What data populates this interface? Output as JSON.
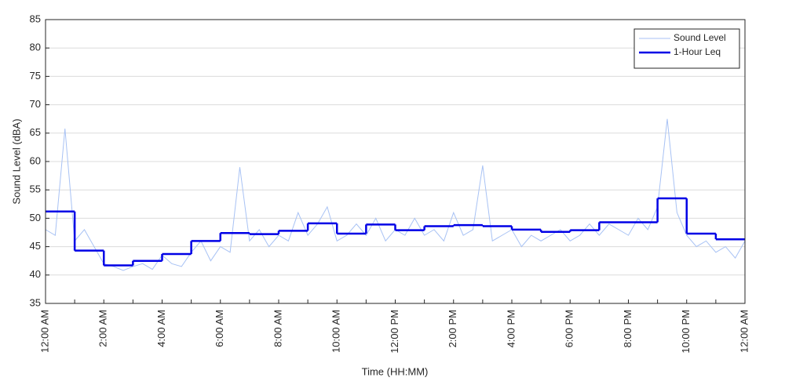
{
  "chart_data": {
    "type": "line",
    "xlabel": "Time (HH:MM)",
    "ylabel": "Sound Level (dBA)",
    "xlim": [
      0,
      1440
    ],
    "xticks": [
      {
        "value": 0,
        "label": "12:00 AM"
      },
      {
        "value": 120,
        "label": "2:00 AM"
      },
      {
        "value": 240,
        "label": "4:00 AM"
      },
      {
        "value": 360,
        "label": "6:00 AM"
      },
      {
        "value": 480,
        "label": "8:00 AM"
      },
      {
        "value": 600,
        "label": "10:00 AM"
      },
      {
        "value": 720,
        "label": "12:00 PM"
      },
      {
        "value": 840,
        "label": "2:00 PM"
      },
      {
        "value": 960,
        "label": "4:00 PM"
      },
      {
        "value": 1080,
        "label": "6:00 PM"
      },
      {
        "value": 1200,
        "label": "8:00 PM"
      },
      {
        "value": 1320,
        "label": "10:00 PM"
      },
      {
        "value": 1440,
        "label": "12:00 AM"
      }
    ],
    "xminorticks": [
      60,
      180,
      300,
      420,
      540,
      660,
      780,
      900,
      1020,
      1140,
      1260,
      1380
    ],
    "ylim": [
      35,
      85
    ],
    "yticks": [
      35,
      40,
      45,
      50,
      55,
      60,
      65,
      70,
      75,
      80,
      85
    ],
    "grid": true,
    "legend": "top-right",
    "series": [
      {
        "name": "Sound Level",
        "color": "#a8c2f4",
        "style": "line",
        "x": [
          0,
          20,
          40,
          60,
          80,
          100,
          120,
          140,
          160,
          180,
          200,
          220,
          240,
          260,
          280,
          300,
          320,
          340,
          360,
          380,
          400,
          420,
          440,
          460,
          480,
          500,
          520,
          540,
          560,
          580,
          600,
          620,
          640,
          660,
          680,
          700,
          720,
          740,
          760,
          780,
          800,
          820,
          840,
          860,
          880,
          900,
          920,
          940,
          960,
          980,
          1000,
          1020,
          1040,
          1060,
          1080,
          1100,
          1120,
          1140,
          1160,
          1180,
          1200,
          1220,
          1240,
          1260,
          1280,
          1300,
          1320,
          1340,
          1360,
          1380,
          1400,
          1420,
          1440
        ],
        "values": [
          48,
          47,
          65.8,
          46,
          48,
          45,
          42,
          41.5,
          40.8,
          41.5,
          42,
          41,
          43.5,
          42,
          41.5,
          44,
          46,
          42.5,
          45,
          44,
          59,
          46,
          48,
          45,
          47,
          46,
          51,
          47,
          49,
          52,
          46,
          47,
          49,
          47,
          50,
          46,
          48,
          47,
          50,
          47,
          48,
          46,
          51,
          47,
          48,
          59.3,
          46,
          47,
          48,
          45,
          47,
          46,
          47,
          48,
          46,
          47,
          49,
          47,
          49,
          48,
          47,
          50,
          48,
          52,
          67.5,
          51,
          47,
          45,
          46,
          44,
          45,
          43,
          46
        ]
      },
      {
        "name": "1-Hour Leq",
        "color": "#0000e6",
        "style": "step",
        "x": [
          0,
          60,
          120,
          180,
          240,
          300,
          360,
          420,
          480,
          540,
          600,
          660,
          720,
          780,
          840,
          900,
          960,
          1020,
          1080,
          1140,
          1200,
          1260,
          1320,
          1380
        ],
        "values": [
          51.2,
          44.3,
          41.7,
          42.5,
          43.7,
          46.0,
          47.4,
          47.2,
          47.8,
          49.1,
          47.3,
          48.9,
          47.9,
          48.6,
          48.8,
          48.6,
          48.0,
          47.6,
          47.9,
          49.3,
          49.3,
          53.5,
          47.3,
          46.3
        ]
      }
    ]
  }
}
